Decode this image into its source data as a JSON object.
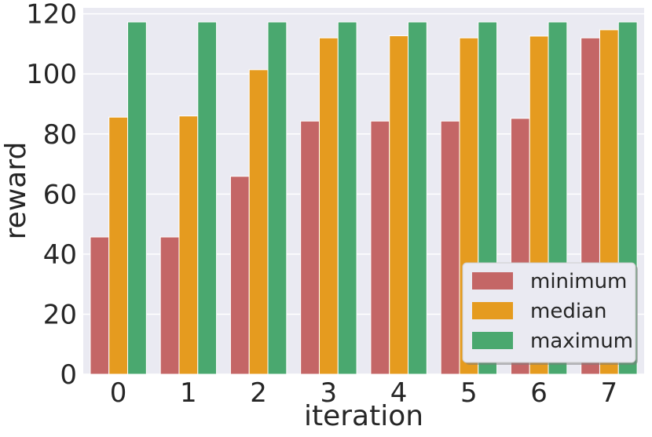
{
  "chart_data": {
    "type": "bar",
    "title": "",
    "xlabel": "iteration",
    "ylabel": "reward",
    "categories": [
      "0",
      "1",
      "2",
      "3",
      "4",
      "5",
      "6",
      "7"
    ],
    "series": [
      {
        "name": "minimum",
        "color": "#c46666",
        "values": [
          45.7,
          45.7,
          65.9,
          84.3,
          84.3,
          84.3,
          85.2,
          112.0
        ]
      },
      {
        "name": "median",
        "color": "#e59b1f",
        "values": [
          85.6,
          86.0,
          101.4,
          112.0,
          112.7,
          112.0,
          112.6,
          114.7
        ]
      },
      {
        "name": "maximum",
        "color": "#4aa86f",
        "values": [
          117.3,
          117.3,
          117.3,
          117.3,
          117.3,
          117.3,
          117.3,
          117.3
        ]
      }
    ],
    "ylim": [
      0,
      122
    ],
    "yticks": [
      0,
      20,
      40,
      60,
      80,
      100,
      120
    ],
    "grid": true,
    "legend_position": "lower-right"
  }
}
